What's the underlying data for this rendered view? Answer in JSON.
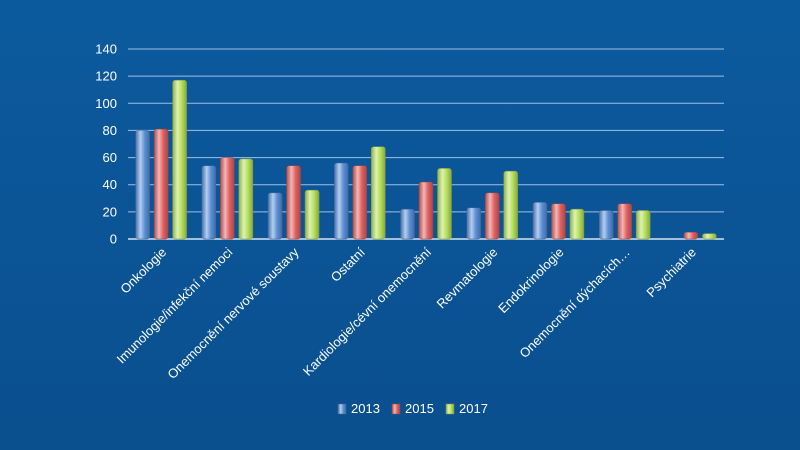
{
  "chart_data": {
    "type": "bar",
    "title": "",
    "xlabel": "",
    "ylabel": "",
    "ylim": [
      0,
      140
    ],
    "yticks": [
      0,
      20,
      40,
      60,
      80,
      100,
      120,
      140
    ],
    "grid": true,
    "legend_position": "bottom",
    "categories": [
      "Onkologie",
      "Imunologie/infekční nemoci",
      "Onemocnění nervové soustavy",
      "Ostatní",
      "Kardiologie/cévní onemocnění",
      "Revmatologie",
      "Endokrinologie",
      "Onemocnění dýchacích…",
      "Psychiatrie"
    ],
    "series": [
      {
        "name": "2013",
        "color": "#5b8fd8",
        "values": [
          80,
          54,
          34,
          56,
          22,
          23,
          27,
          21,
          0
        ]
      },
      {
        "name": "2015",
        "color": "#e06060",
        "values": [
          81,
          60,
          54,
          54,
          42,
          34,
          26,
          26,
          5
        ]
      },
      {
        "name": "2017",
        "color": "#b5df5a",
        "values": [
          117,
          59,
          36,
          68,
          52,
          50,
          22,
          21,
          4
        ]
      }
    ]
  },
  "colors": {
    "background": "#0b5394",
    "grid": "#9fc0e4",
    "axis_text": "#ffffff"
  }
}
